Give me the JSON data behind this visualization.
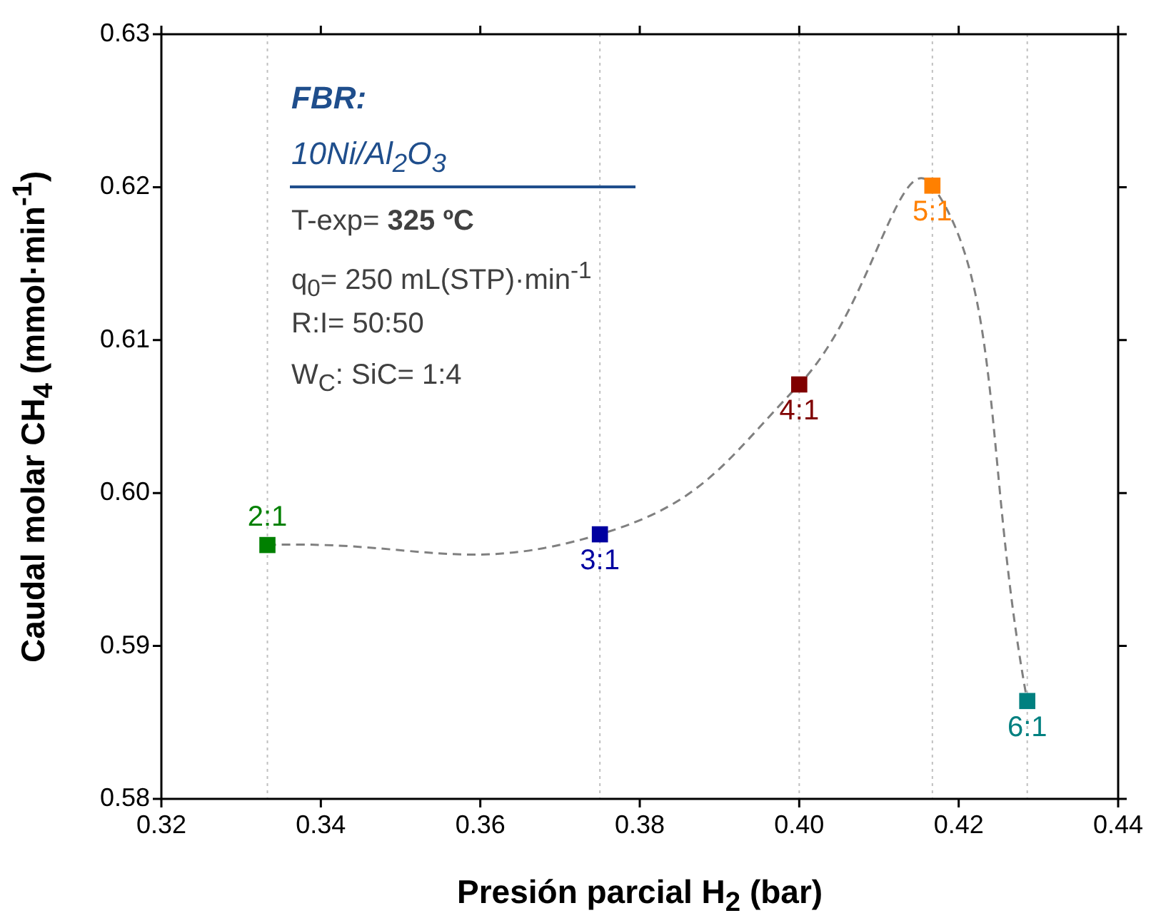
{
  "chart_data": {
    "type": "scatter",
    "xlabel": "Presión parcial H$_{2}$ (bar)",
    "ylabel": "Caudal molar CH$_{4}$ (mmol·min$^{-1}$)",
    "xlim": [
      0.32,
      0.44
    ],
    "xticks": [
      0.32,
      0.34,
      0.36,
      0.38,
      {
        "value": 0.4,
        "label": "0.40"
      },
      0.42,
      0.44
    ],
    "ylim": [
      0.58,
      0.63
    ],
    "yticks": [
      0.58,
      0.59,
      {
        "value": 0.6,
        "label": "0.60"
      },
      0.61,
      0.62,
      0.63
    ],
    "marker": "square",
    "grid": false,
    "legend": false,
    "series": [
      {
        "type": "line",
        "color": "#808080",
        "line_style": "dashed",
        "marker": "none",
        "x": [
          0.3333,
          0.375,
          0.4,
          0.4167,
          0.4286
        ],
        "values": [
          0.5966,
          0.5973,
          0.6071,
          0.6201,
          0.5864
        ]
      },
      {
        "name": "2:1",
        "color": "#008000",
        "x": [
          0.3333
        ],
        "values": [
          0.5966
        ]
      },
      {
        "name": "3:1",
        "color": "#0000a0",
        "x": [
          0.375
        ],
        "values": [
          0.5973
        ]
      },
      {
        "name": "4:1",
        "color": "#800000",
        "x": [
          0.4
        ],
        "values": [
          0.6071
        ]
      },
      {
        "name": "5:1",
        "color": "#ff8000",
        "x": [
          0.4167
        ],
        "values": [
          0.6201
        ]
      },
      {
        "name": "6:1",
        "color": "#008080",
        "x": [
          0.4286
        ],
        "values": [
          0.5864
        ]
      }
    ],
    "ref_lines": [
      {
        "axis": "x",
        "value": 0.3333,
        "color": "#c0c0c0",
        "line_style": "dotted"
      },
      {
        "axis": "x",
        "value": 0.375,
        "color": "#c0c0c0",
        "line_style": "dotted"
      },
      {
        "axis": "x",
        "value": 0.4,
        "color": "#c0c0c0",
        "line_style": "dotted"
      },
      {
        "axis": "x",
        "value": 0.4167,
        "color": "#c0c0c0",
        "line_style": "dotted"
      },
      {
        "axis": "x",
        "value": 0.4286,
        "color": "#c0c0c0",
        "line_style": "dotted"
      }
    ],
    "annotations": [
      "FBR:",
      "10Ni/Al$_{2}$O$_{3}$",
      "T-exp= 325 ºC",
      "q$_{0}$= 250 mL(STP)·min$^{-1}$",
      "R:I= 50:50",
      "W$_{C}$: SiC= 1:4"
    ]
  }
}
